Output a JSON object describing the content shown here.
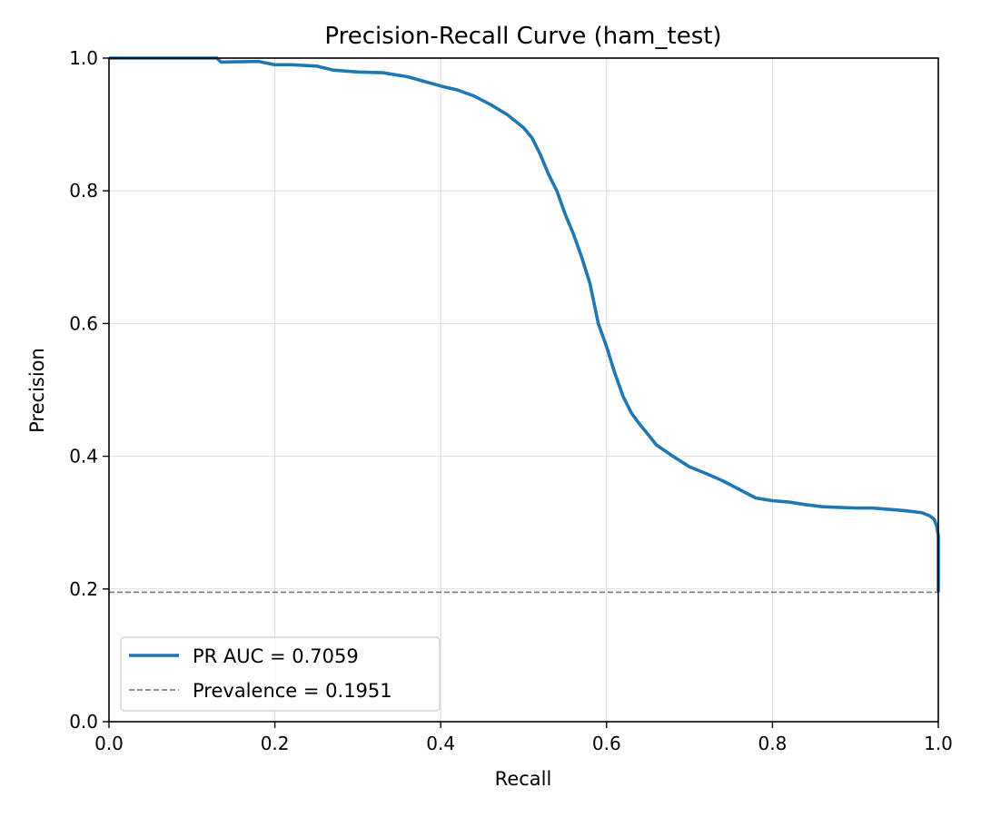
{
  "chart_data": {
    "type": "line",
    "title": "Precision-Recall Curve (ham_test)",
    "xlabel": "Recall",
    "ylabel": "Precision",
    "xlim": [
      0.0,
      1.0
    ],
    "ylim": [
      0.0,
      1.0
    ],
    "grid": true,
    "legend_position": "bottom-left",
    "xticks": [
      "0.0",
      "0.2",
      "0.4",
      "0.6",
      "0.8",
      "1.0"
    ],
    "yticks": [
      "0.0",
      "0.2",
      "0.4",
      "0.6",
      "0.8",
      "1.0"
    ],
    "series": [
      {
        "name": "PR AUC = 0.7059",
        "color": "#1f77b4",
        "style": "solid",
        "points": [
          [
            0.0,
            1.0
          ],
          [
            0.05,
            1.0
          ],
          [
            0.1,
            1.0
          ],
          [
            0.13,
            1.0
          ],
          [
            0.135,
            0.994
          ],
          [
            0.18,
            0.995
          ],
          [
            0.2,
            0.99
          ],
          [
            0.22,
            0.99
          ],
          [
            0.25,
            0.988
          ],
          [
            0.27,
            0.982
          ],
          [
            0.3,
            0.979
          ],
          [
            0.33,
            0.978
          ],
          [
            0.36,
            0.972
          ],
          [
            0.38,
            0.965
          ],
          [
            0.4,
            0.958
          ],
          [
            0.42,
            0.952
          ],
          [
            0.44,
            0.943
          ],
          [
            0.46,
            0.93
          ],
          [
            0.48,
            0.915
          ],
          [
            0.5,
            0.895
          ],
          [
            0.51,
            0.88
          ],
          [
            0.52,
            0.855
          ],
          [
            0.53,
            0.825
          ],
          [
            0.54,
            0.8
          ],
          [
            0.55,
            0.765
          ],
          [
            0.56,
            0.735
          ],
          [
            0.57,
            0.7
          ],
          [
            0.58,
            0.66
          ],
          [
            0.59,
            0.6
          ],
          [
            0.6,
            0.565
          ],
          [
            0.61,
            0.525
          ],
          [
            0.62,
            0.49
          ],
          [
            0.63,
            0.465
          ],
          [
            0.64,
            0.448
          ],
          [
            0.65,
            0.433
          ],
          [
            0.66,
            0.417
          ],
          [
            0.68,
            0.4
          ],
          [
            0.7,
            0.384
          ],
          [
            0.72,
            0.374
          ],
          [
            0.74,
            0.363
          ],
          [
            0.76,
            0.35
          ],
          [
            0.78,
            0.337
          ],
          [
            0.8,
            0.333
          ],
          [
            0.82,
            0.331
          ],
          [
            0.84,
            0.327
          ],
          [
            0.86,
            0.324
          ],
          [
            0.88,
            0.323
          ],
          [
            0.9,
            0.322
          ],
          [
            0.92,
            0.322
          ],
          [
            0.94,
            0.32
          ],
          [
            0.96,
            0.318
          ],
          [
            0.98,
            0.315
          ],
          [
            0.99,
            0.31
          ],
          [
            0.995,
            0.305
          ],
          [
            0.998,
            0.295
          ],
          [
            1.0,
            0.28
          ],
          [
            1.0,
            0.1951
          ]
        ]
      },
      {
        "name": "Prevalence = 0.1951",
        "color": "#808080",
        "style": "dashed",
        "points": [
          [
            0.0,
            0.1951
          ],
          [
            1.0,
            0.1951
          ]
        ]
      }
    ]
  }
}
